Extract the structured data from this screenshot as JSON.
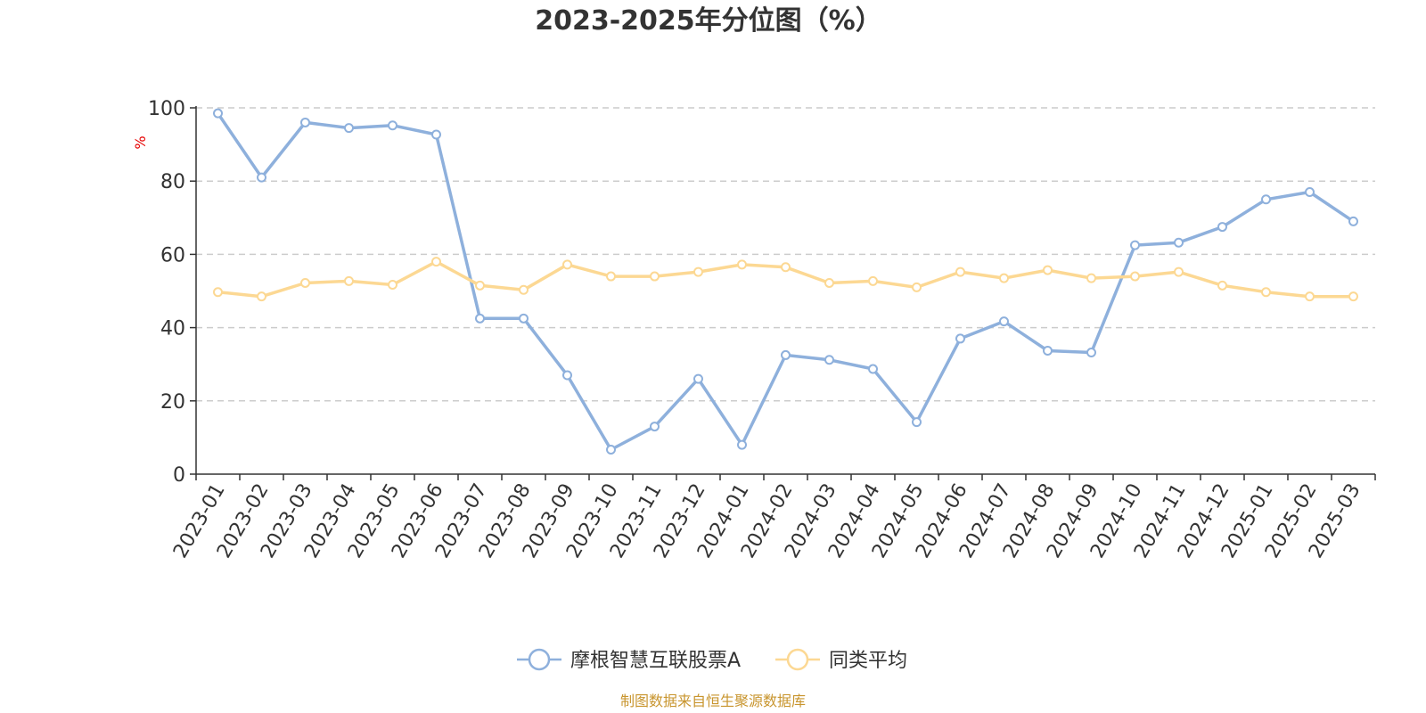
{
  "chart_data": {
    "type": "line",
    "title": "2023-2025年分位图（%）",
    "ylabel": "%",
    "xlabel": "",
    "ylim": [
      0,
      100
    ],
    "yticks": [
      0,
      20,
      40,
      60,
      80,
      100
    ],
    "grid": true,
    "legend_position": "bottom-center",
    "categories": [
      "2023-01",
      "2023-02",
      "2023-03",
      "2023-04",
      "2023-05",
      "2023-06",
      "2023-07",
      "2023-08",
      "2023-09",
      "2023-10",
      "2023-11",
      "2023-12",
      "2024-01",
      "2024-02",
      "2024-03",
      "2024-04",
      "2024-05",
      "2024-06",
      "2024-07",
      "2024-08",
      "2024-09",
      "2024-10",
      "2024-11",
      "2024-12",
      "2025-01",
      "2025-02",
      "2025-03"
    ],
    "series": [
      {
        "name": "摩根智慧互联股票A",
        "color": "#8eb0dc",
        "values": [
          98.5,
          81,
          96,
          94.5,
          95.2,
          92.7,
          42.5,
          42.5,
          27,
          6.7,
          13,
          26,
          8,
          32.5,
          31.2,
          28.7,
          14.2,
          37,
          41.7,
          33.7,
          33.2,
          62.5,
          63.2,
          67.5,
          75,
          77,
          69
        ]
      },
      {
        "name": "同类平均",
        "color": "#fcd893",
        "values": [
          49.7,
          48.5,
          52.2,
          52.7,
          51.7,
          58,
          51.5,
          50.3,
          57.2,
          54,
          54,
          55.2,
          57.2,
          56.5,
          52.2,
          52.7,
          51,
          55.2,
          53.5,
          55.7,
          53.5,
          54,
          55.2,
          51.5,
          49.7,
          48.5,
          48.5
        ]
      }
    ],
    "source": "制图数据来自恒生聚源数据库",
    "source_color": "#c8952e",
    "axis_color": "#333333",
    "grid_color": "#cccccc"
  }
}
